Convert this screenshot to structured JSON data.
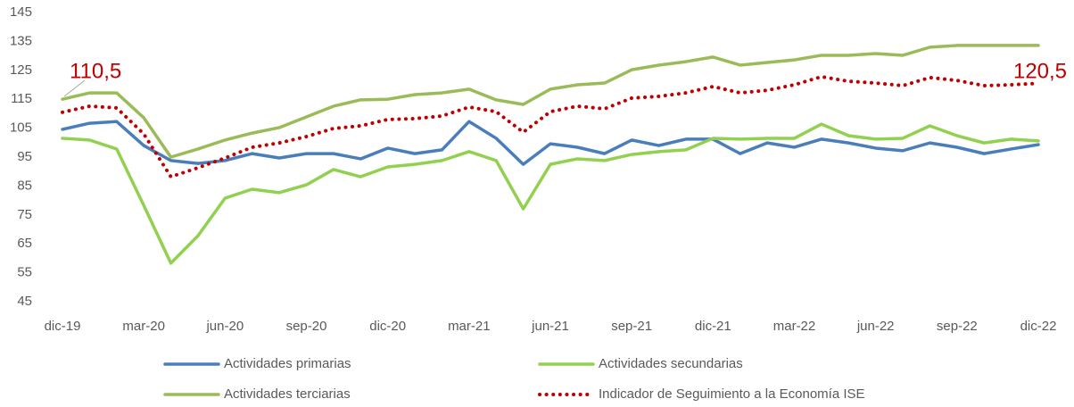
{
  "chart_data": {
    "type": "line",
    "categories": [
      "dic-19",
      null,
      null,
      "mar-20",
      null,
      null,
      "jun-20",
      null,
      null,
      "sep-20",
      null,
      null,
      "dic-20",
      null,
      null,
      "mar-21",
      null,
      null,
      "jun-21",
      null,
      null,
      "sep-21",
      null,
      null,
      "dic-21",
      null,
      null,
      "mar-22",
      null,
      null,
      "jun-22",
      null,
      null,
      "sep-22",
      null,
      null,
      "dic-22"
    ],
    "series": [
      {
        "name": "Actividades primarias",
        "color": "#4a7ebb",
        "values": [
          104.6,
          106.7,
          107.3,
          99,
          93.8,
          92.8,
          93.8,
          96.2,
          94.7,
          96.2,
          96.2,
          94.4,
          98.1,
          96.2,
          97.5,
          107.3,
          101.5,
          92.5,
          99.6,
          98.4,
          96.2,
          100.9,
          99,
          101.2,
          101.2,
          96.2,
          99.9,
          98.4,
          101.2,
          99.9,
          98.1,
          97.2,
          99.9,
          98.4,
          96.2,
          97.8,
          99.3
        ]
      },
      {
        "name": "Actividades secundarias",
        "color": "#92d050",
        "values": [
          101.5,
          100.9,
          97.8,
          78.3,
          58.3,
          67.8,
          80.8,
          83.9,
          82.7,
          85.4,
          90.7,
          88.2,
          91.6,
          92.5,
          93.8,
          96.9,
          93.8,
          77.1,
          92.5,
          94.4,
          93.8,
          95.9,
          96.9,
          97.5,
          101.5,
          101.2,
          101.5,
          101.5,
          106.4,
          102.4,
          101.2,
          101.5,
          105.8,
          102.4,
          99.9,
          101.2,
          100.6
        ]
      },
      {
        "name": "Actividades terciarias",
        "color": "#9bbb59",
        "values": [
          115,
          117.2,
          117.2,
          108.6,
          95,
          97.8,
          100.9,
          103.3,
          105.2,
          108.9,
          112.6,
          114.8,
          115,
          116.6,
          117.2,
          118.5,
          114.8,
          113.2,
          118.5,
          120,
          120.6,
          125.2,
          126.8,
          128,
          129.6,
          126.8,
          127.7,
          128.6,
          130.2,
          130.2,
          130.8,
          130.2,
          133,
          133.6,
          133.6,
          133.6,
          133.6
        ]
      },
      {
        "name": "Indicador de Seguimiento a la Economía ISE",
        "color": "#c00000",
        "dotted": true,
        "values": [
          110.5,
          112.6,
          112,
          103,
          88.2,
          91.3,
          94.7,
          98.4,
          99.9,
          102.1,
          104.9,
          105.8,
          108,
          108.3,
          109.2,
          112.3,
          110.7,
          103.6,
          110.7,
          112.6,
          111.7,
          115.4,
          116,
          117.2,
          119.4,
          117.2,
          118.1,
          120,
          122.8,
          121.2,
          120.6,
          119.7,
          122.5,
          121.5,
          119.7,
          120,
          120.5
        ],
        "value_labels": [
          "110,5",
          null,
          null,
          null,
          null,
          null,
          null,
          null,
          null,
          null,
          null,
          null,
          null,
          null,
          null,
          null,
          null,
          null,
          null,
          null,
          null,
          null,
          null,
          null,
          null,
          null,
          null,
          null,
          null,
          null,
          null,
          null,
          null,
          null,
          null,
          null,
          "120,5"
        ]
      }
    ],
    "ylim": [
      45,
      145
    ],
    "yticks": [
      45,
      55,
      65,
      75,
      85,
      95,
      105,
      115,
      125,
      135,
      145
    ],
    "grid": false
  }
}
